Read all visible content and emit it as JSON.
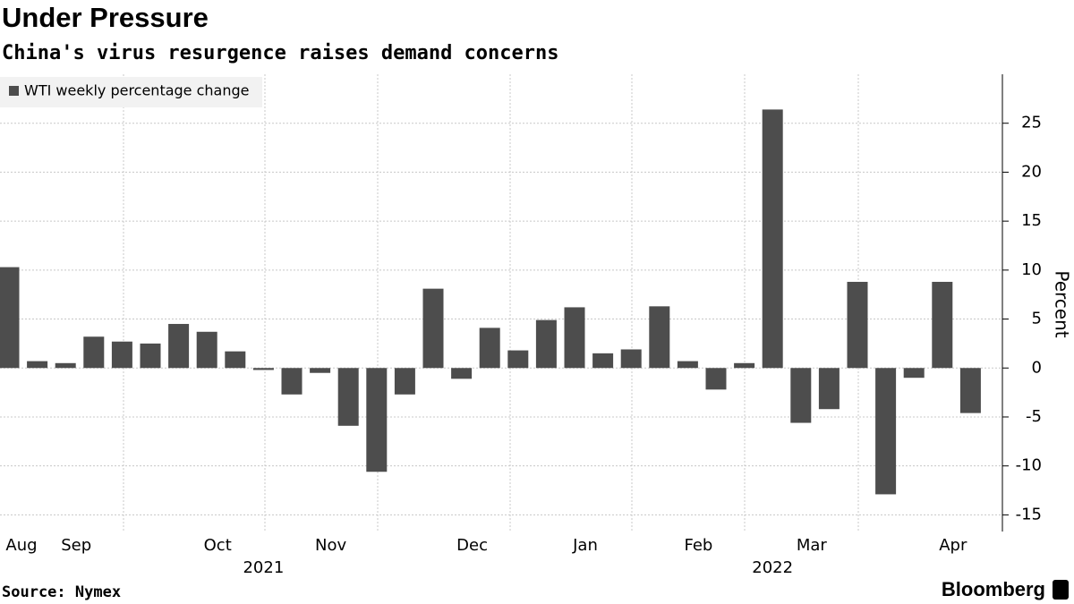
{
  "chart_data": {
    "type": "bar",
    "title": "Under Pressure",
    "subtitle": "China's virus resurgence raises demand concerns",
    "legend": "WTI weekly percentage change",
    "y_label": "Percent",
    "source": "Source: Nymex",
    "brand": "Bloomberg",
    "color": "#4d4d4d",
    "categories": [
      "Aug",
      null,
      "Sep",
      null,
      null,
      null,
      null,
      "Oct",
      null,
      null,
      null,
      "Nov",
      null,
      null,
      null,
      null,
      "Dec",
      null,
      null,
      null,
      "Jan",
      null,
      null,
      null,
      "Feb",
      null,
      null,
      null,
      "Mar",
      null,
      null,
      null,
      null,
      "Apr",
      null
    ],
    "years": [
      "2021",
      "2022"
    ],
    "values": [
      10.3,
      0.7,
      0.5,
      3.2,
      2.7,
      2.5,
      4.5,
      3.7,
      1.7,
      -0.2,
      -2.7,
      -0.5,
      -5.9,
      -10.6,
      -2.7,
      8.1,
      -1.1,
      4.1,
      1.8,
      4.9,
      6.2,
      1.5,
      1.9,
      6.3,
      0.7,
      -2.2,
      0.5,
      26.4,
      -5.6,
      -4.2,
      8.8,
      -12.9,
      -1.0,
      8.8,
      -4.6
    ],
    "ylim": [
      -16.7,
      30
    ],
    "yticks": [
      -15,
      -10,
      -5,
      0,
      5,
      10,
      15,
      20,
      25
    ],
    "grid": true
  }
}
